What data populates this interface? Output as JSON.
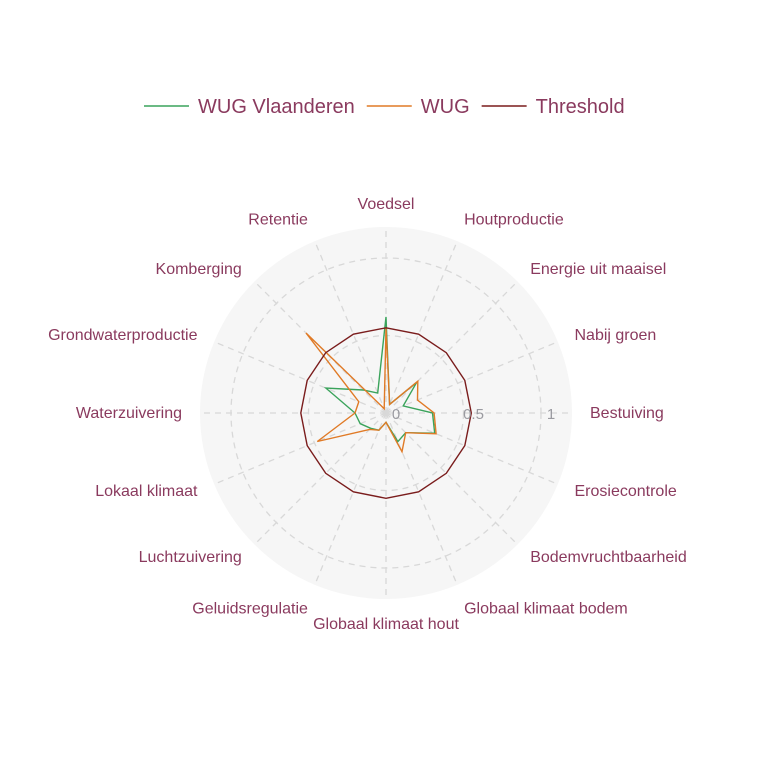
{
  "chart_data": {
    "type": "radar",
    "axes": [
      "Voedsel",
      "Houtproductie",
      "Energie uit maaisel",
      "Nabij groen",
      "Bestuiving",
      "Erosiecontrole",
      "Bodemvruchtbaarheid",
      "Globaal klimaat bodem",
      "Globaal klimaat hout",
      "Geluidsregulatie",
      "Luchtzuivering",
      "Lokaal klimaat",
      "Waterzuivering",
      "Grondwaterproductie",
      "Komberging",
      "Retentie"
    ],
    "radial_ticks": [
      "0",
      "0.5",
      "1"
    ],
    "radial_range": [
      0,
      1.2
    ],
    "legend_position": "top",
    "series": [
      {
        "name": "WUG Vlaanderen",
        "color": "#3aa35b",
        "values": [
          0.62,
          0.06,
          0.28,
          0.12,
          0.3,
          0.34,
          0.18,
          0.2,
          0.06,
          0.12,
          0.14,
          0.18,
          0.2,
          0.42,
          0.21,
          0.14
        ]
      },
      {
        "name": "WUG",
        "color": "#e07a26",
        "values": [
          0.55,
          0.06,
          0.29,
          0.22,
          0.31,
          0.35,
          0.18,
          0.27,
          0.06,
          0.12,
          0.15,
          0.48,
          0.2,
          0.19,
          0.73,
          0.03
        ]
      },
      {
        "name": "Threshold",
        "color": "#7a1c1c",
        "values": [
          0.55,
          0.55,
          0.55,
          0.55,
          0.55,
          0.55,
          0.55,
          0.55,
          0.55,
          0.55,
          0.55,
          0.55,
          0.55,
          0.55,
          0.55,
          0.55
        ]
      }
    ]
  },
  "colors": {
    "text": "#8a3a5e",
    "tick": "#9a9aa0",
    "grid": "#d8d8d8",
    "background": "#f6f6f6"
  }
}
